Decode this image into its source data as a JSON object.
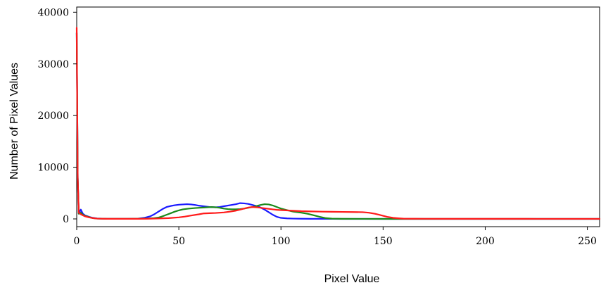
{
  "chart_data": {
    "type": "line",
    "title": "",
    "xlabel": "Pixel Value",
    "ylabel": "Number of Pixel Values",
    "xlim": [
      0,
      256
    ],
    "ylim": [
      -1500,
      41000
    ],
    "xticks": [
      0,
      50,
      100,
      150,
      200,
      250
    ],
    "yticks": [
      0,
      10000,
      20000,
      30000,
      40000
    ],
    "grid": false,
    "legend": "none",
    "series": [
      {
        "color": "#1a1aff",
        "x": [
          0,
          0.5,
          1,
          2,
          3,
          4,
          6,
          8,
          10,
          15,
          20,
          25,
          30,
          33,
          36,
          38,
          40,
          42,
          44,
          46,
          48,
          50,
          52,
          54,
          56,
          58,
          60,
          62,
          65,
          68,
          70,
          72,
          75,
          78,
          80,
          82,
          84,
          86,
          88,
          90,
          92,
          94,
          96,
          98,
          100,
          103,
          106,
          110,
          115,
          120,
          125,
          130,
          150,
          200,
          256
        ],
        "y": [
          36000,
          8000,
          1000,
          1800,
          1000,
          700,
          400,
          200,
          80,
          20,
          10,
          20,
          60,
          200,
          500,
          900,
          1400,
          1900,
          2300,
          2500,
          2650,
          2750,
          2800,
          2850,
          2800,
          2700,
          2550,
          2450,
          2300,
          2250,
          2300,
          2450,
          2650,
          2850,
          3050,
          3000,
          2900,
          2700,
          2500,
          2200,
          1800,
          1300,
          800,
          400,
          200,
          100,
          60,
          30,
          15,
          10,
          5,
          3,
          0,
          0,
          0
        ]
      },
      {
        "color": "#1a8a1a",
        "x": [
          0,
          0.5,
          1,
          2,
          3,
          4,
          6,
          8,
          10,
          15,
          20,
          25,
          30,
          35,
          38,
          40,
          42,
          44,
          46,
          48,
          50,
          52,
          55,
          58,
          60,
          62,
          64,
          66,
          68,
          70,
          72,
          74,
          76,
          78,
          80,
          82,
          84,
          86,
          88,
          90,
          92,
          94,
          96,
          98,
          100,
          103,
          106,
          110,
          113,
          116,
          119,
          122,
          125,
          130,
          140,
          150,
          200,
          256
        ],
        "y": [
          36000,
          8000,
          1000,
          1200,
          800,
          600,
          350,
          150,
          60,
          15,
          10,
          15,
          30,
          80,
          150,
          250,
          500,
          800,
          1100,
          1400,
          1650,
          1850,
          2000,
          2100,
          2150,
          2200,
          2250,
          2300,
          2250,
          2150,
          2000,
          1900,
          1850,
          1850,
          1900,
          2000,
          2150,
          2300,
          2500,
          2700,
          2850,
          2800,
          2600,
          2300,
          2000,
          1700,
          1400,
          1200,
          1000,
          700,
          400,
          150,
          50,
          20,
          5,
          0,
          0,
          0
        ]
      },
      {
        "color": "#ff1a1a",
        "x": [
          0,
          0.5,
          1,
          2,
          3,
          4,
          6,
          8,
          10,
          15,
          20,
          25,
          30,
          35,
          40,
          45,
          50,
          53,
          56,
          60,
          62,
          65,
          68,
          70,
          72,
          75,
          78,
          80,
          82,
          84,
          86,
          88,
          90,
          92,
          94,
          96,
          98,
          100,
          105,
          110,
          115,
          120,
          125,
          130,
          135,
          140,
          143,
          146,
          148,
          150,
          152,
          155,
          158,
          160,
          165,
          170,
          180,
          200,
          220,
          240,
          256
        ],
        "y": [
          37000,
          8000,
          1200,
          900,
          700,
          500,
          300,
          150,
          60,
          15,
          10,
          15,
          20,
          30,
          80,
          150,
          300,
          450,
          650,
          900,
          1050,
          1100,
          1150,
          1200,
          1250,
          1400,
          1600,
          1800,
          2000,
          2200,
          2300,
          2250,
          2150,
          2050,
          1950,
          1850,
          1750,
          1700,
          1600,
          1500,
          1450,
          1400,
          1380,
          1350,
          1330,
          1300,
          1200,
          1000,
          800,
          600,
          400,
          200,
          100,
          50,
          30,
          25,
          20,
          15,
          10,
          5,
          5
        ]
      }
    ]
  }
}
